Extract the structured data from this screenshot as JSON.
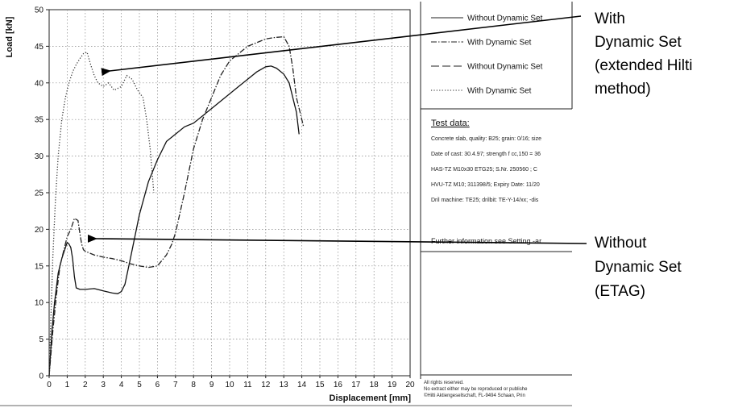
{
  "chart_data": {
    "type": "line",
    "xlabel": "Displacement  [mm]",
    "ylabel": "Load  [kN]",
    "xlim": [
      0,
      20
    ],
    "ylim": [
      0,
      50
    ],
    "x_ticks": [
      0,
      1,
      2,
      3,
      4,
      5,
      6,
      7,
      8,
      9,
      10,
      11,
      12,
      13,
      14,
      15,
      16,
      17,
      18,
      19,
      20
    ],
    "y_ticks": [
      0,
      5,
      10,
      15,
      20,
      25,
      30,
      35,
      40,
      45,
      50
    ],
    "grid": true,
    "legend_position": "right",
    "series": [
      {
        "name": "Without Dynamic Set",
        "style": "solid",
        "color": "#111111",
        "x": [
          0,
          0.15,
          0.3,
          0.5,
          0.7,
          0.9,
          1.0,
          1.1,
          1.2,
          1.3,
          1.4,
          1.5,
          1.7,
          2.0,
          2.5,
          3.0,
          3.5,
          3.8,
          4.0,
          4.2,
          4.5,
          5.0,
          5.5,
          6.0,
          6.5,
          7.0,
          7.5,
          8.0,
          8.5,
          9.0,
          9.5,
          10.0,
          10.5,
          11.0,
          11.5,
          12.0,
          12.3,
          12.6,
          13.0,
          13.3,
          13.5,
          13.7,
          13.85
        ],
        "y": [
          0,
          6,
          10,
          14,
          16,
          17.5,
          18.2,
          18,
          17.5,
          16,
          13.5,
          12,
          11.8,
          11.8,
          11.9,
          11.6,
          11.3,
          11.2,
          11.5,
          12.5,
          16,
          22,
          26.5,
          29.5,
          32,
          33,
          34,
          34.5,
          35.5,
          36.5,
          37.5,
          38.5,
          39.5,
          40.5,
          41.5,
          42.2,
          42.3,
          42,
          41.2,
          40,
          38,
          36,
          33
        ]
      },
      {
        "name": "With Dynamic Set",
        "style": "dashdot",
        "color": "#222222",
        "x": [
          0,
          0.2,
          0.4,
          0.6,
          0.8,
          1.0,
          1.2,
          1.4,
          1.6,
          1.7,
          1.8,
          1.9,
          2.0,
          2.5,
          3.0,
          3.5,
          4.0,
          4.5,
          5.0,
          5.5,
          6.0,
          6.5,
          6.8,
          7.0,
          7.5,
          8.0,
          8.5,
          9.0,
          9.5,
          10.0,
          10.5,
          11.0,
          11.5,
          12.0,
          12.5,
          13.0,
          13.3,
          13.5,
          13.7,
          13.9,
          14.1
        ],
        "y": [
          0,
          6,
          11,
          15,
          17,
          19,
          20,
          21.5,
          21.2,
          19.5,
          18,
          17.2,
          17,
          16.5,
          16.2,
          16,
          15.7,
          15.3,
          15,
          14.8,
          15,
          16.5,
          18,
          19.5,
          25,
          31,
          35,
          38,
          41,
          43,
          44,
          45,
          45.5,
          46,
          46.2,
          46.3,
          45,
          42,
          38,
          36,
          34
        ]
      },
      {
        "name": "Without Dynamic Set",
        "style": "longdash",
        "color": "#333333",
        "x": [],
        "y": []
      },
      {
        "name": "With Dynamic Set",
        "style": "dotted",
        "color": "#333333",
        "x": [
          0,
          0.1,
          0.2,
          0.35,
          0.5,
          0.7,
          0.9,
          1.1,
          1.3,
          1.5,
          1.7,
          1.9,
          2.1,
          2.3,
          2.5,
          2.7,
          3.0,
          3.3,
          3.6,
          4.0,
          4.3,
          4.6,
          4.9,
          5.2,
          5.4,
          5.6,
          5.8
        ],
        "y": [
          0,
          8,
          16,
          24,
          30,
          35,
          38,
          40,
          41.5,
          42.5,
          43.3,
          44,
          44.2,
          42.5,
          41,
          40,
          39.5,
          40,
          39,
          39.5,
          41,
          40.5,
          39,
          38,
          35,
          31,
          25
        ]
      }
    ],
    "legend": [
      "Without Dynamic Set",
      "With Dynamic Set",
      "Without Dynamic Set",
      "With Dynamic Set"
    ]
  },
  "panel": {
    "heading": "Test data:",
    "lines": [
      "Concrete slab, quality: B25; grain: 0/16; size",
      "Date of cast: 30.4.97; strength f  cc,150 = 36",
      "HAS-TZ M10x30 ETG25; S.Nr. 250560 ; C",
      "HVU-TZ M10; 311398/5; Expiry Date: 11/20",
      "Dril machine: TE25; drilbit: TE-Y-14/xx; -dis"
    ],
    "further": "Further information see Setting -ar",
    "footer": [
      "All rights reserved.",
      "No extract either may be reproduced or publishe",
      "©Hilti Aktiengesellschaft, FL-9494 Schaan, Prin"
    ]
  },
  "annotations": {
    "top": [
      "With",
      "Dynamic Set",
      "(extended Hilti",
      "method)"
    ],
    "bottom": [
      "Without",
      "Dynamic Set",
      "(ETAG)"
    ]
  }
}
